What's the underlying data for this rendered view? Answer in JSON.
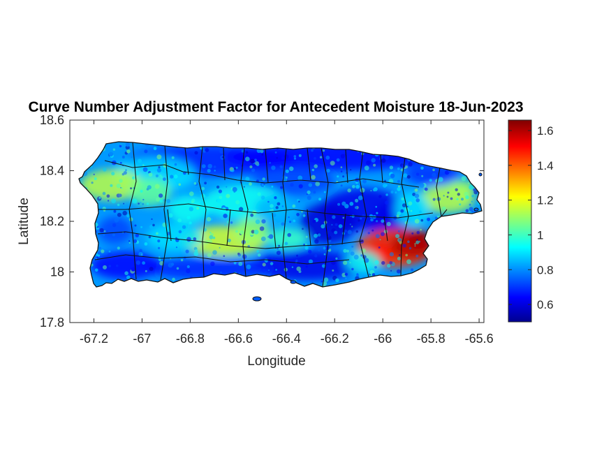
{
  "chart_data": {
    "type": "heatmap",
    "title": "Curve Number Adjustment Factor for Antecedent Moisture 18-Jun-2023",
    "xlabel": "Longitude",
    "ylabel": "Latitude",
    "xlim": [
      -67.3,
      -65.58
    ],
    "ylim": [
      17.8,
      18.6
    ],
    "x_ticks": [
      -67.2,
      -67,
      -66.8,
      -66.6,
      -66.4,
      -66.2,
      -66,
      -65.8,
      -65.6
    ],
    "y_ticks": [
      17.8,
      18,
      18.2,
      18.4,
      18.6
    ],
    "x_tick_labels": [
      "-67.2",
      "-67",
      "-66.8",
      "-66.6",
      "-66.4",
      "-66.2",
      "-66",
      "-65.8",
      "-65.6"
    ],
    "y_tick_labels": [
      "17.8",
      "18",
      "18.2",
      "18.4",
      "18.6"
    ],
    "colorbar": {
      "colormap": "jet",
      "range": [
        0.5,
        1.66
      ],
      "ticks": [
        0.6,
        0.8,
        1,
        1.2,
        1.4,
        1.6
      ],
      "tick_labels": [
        "0.6",
        "0.8",
        "1",
        "1.2",
        "1.4",
        "1.6"
      ]
    },
    "grid": false,
    "notable_regions": [
      {
        "lon": -65.92,
        "lat": 18.1,
        "value": 1.6
      },
      {
        "lon": -66.6,
        "lat": 18.13,
        "value": 1.2
      },
      {
        "lon": -67.15,
        "lat": 18.35,
        "value": 1.15
      },
      {
        "lon": -65.75,
        "lat": 18.3,
        "value": 1.15
      },
      {
        "lon": -66.5,
        "lat": 18.42,
        "value": 0.7
      },
      {
        "lon": -66.3,
        "lat": 18.0,
        "value": 0.7
      }
    ]
  }
}
